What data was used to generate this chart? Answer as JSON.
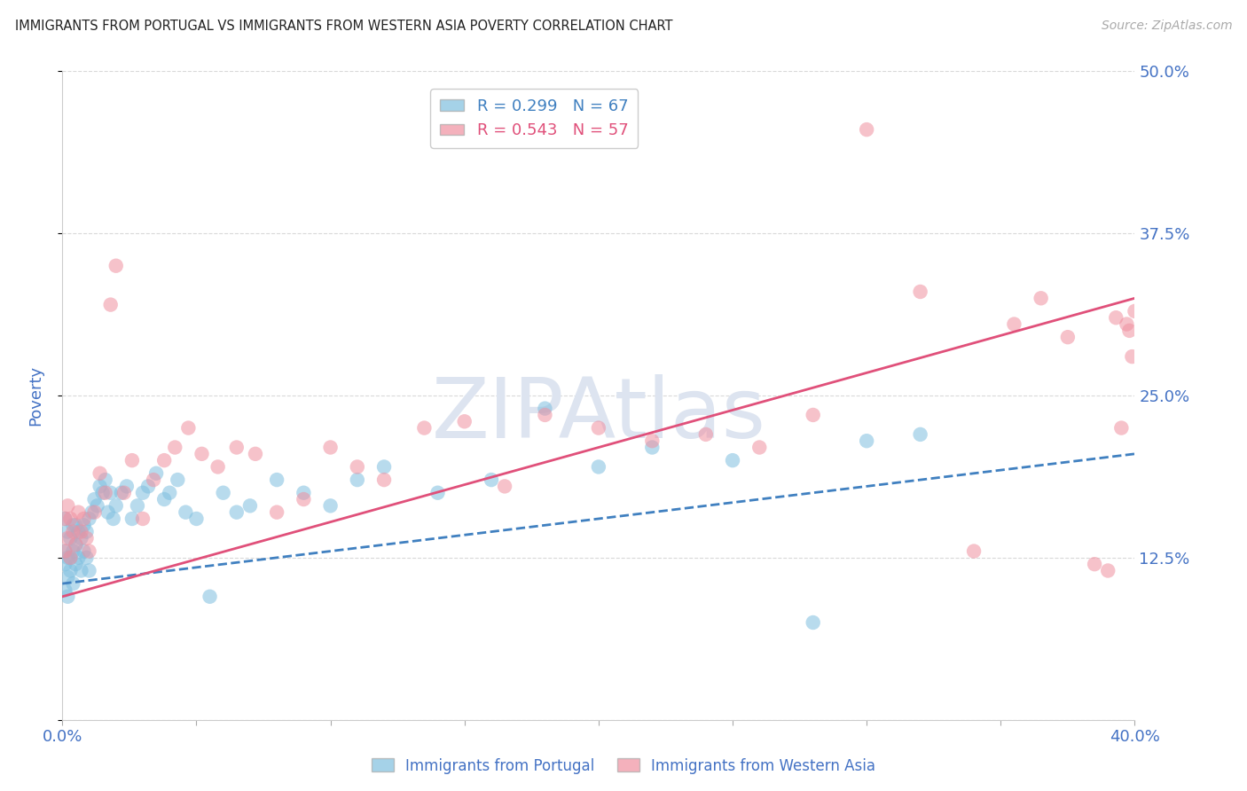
{
  "title": "IMMIGRANTS FROM PORTUGAL VS IMMIGRANTS FROM WESTERN ASIA POVERTY CORRELATION CHART",
  "source": "Source: ZipAtlas.com",
  "ylabel": "Poverty",
  "xlim": [
    0.0,
    0.4
  ],
  "ylim": [
    0.0,
    0.5
  ],
  "xticks": [
    0.0,
    0.05,
    0.1,
    0.15,
    0.2,
    0.25,
    0.3,
    0.35,
    0.4
  ],
  "xticklabels": [
    "0.0%",
    "",
    "",
    "",
    "",
    "",
    "",
    "",
    "40.0%"
  ],
  "yticks": [
    0.0,
    0.125,
    0.25,
    0.375,
    0.5
  ],
  "yticklabels": [
    "",
    "12.5%",
    "25.0%",
    "37.5%",
    "50.0%"
  ],
  "portugal_R": 0.299,
  "portugal_N": 67,
  "western_asia_R": 0.543,
  "western_asia_N": 57,
  "portugal_color": "#7fbfdf",
  "western_asia_color": "#f090a0",
  "portugal_line_color": "#4080c0",
  "western_asia_line_color": "#e0507a",
  "background_color": "#ffffff",
  "grid_color": "#d0d0d0",
  "watermark": "ZIPAtlas",
  "watermark_color": "#dde4f0",
  "title_color": "#222222",
  "tick_label_color": "#4472c4",
  "legend_label_color_portugal": "#4080c0",
  "legend_label_color_wa": "#e0507a",
  "portugal_x": [
    0.001,
    0.001,
    0.001,
    0.001,
    0.002,
    0.002,
    0.002,
    0.002,
    0.003,
    0.003,
    0.003,
    0.004,
    0.004,
    0.004,
    0.005,
    0.005,
    0.005,
    0.006,
    0.006,
    0.007,
    0.007,
    0.008,
    0.008,
    0.009,
    0.009,
    0.01,
    0.01,
    0.011,
    0.012,
    0.013,
    0.014,
    0.015,
    0.016,
    0.017,
    0.018,
    0.019,
    0.02,
    0.022,
    0.024,
    0.026,
    0.028,
    0.03,
    0.032,
    0.035,
    0.038,
    0.04,
    0.043,
    0.046,
    0.05,
    0.055,
    0.06,
    0.065,
    0.07,
    0.08,
    0.09,
    0.1,
    0.11,
    0.12,
    0.14,
    0.16,
    0.18,
    0.2,
    0.22,
    0.25,
    0.28,
    0.3,
    0.32
  ],
  "portugal_y": [
    0.1,
    0.12,
    0.13,
    0.155,
    0.095,
    0.11,
    0.125,
    0.145,
    0.115,
    0.125,
    0.14,
    0.105,
    0.13,
    0.15,
    0.12,
    0.135,
    0.15,
    0.125,
    0.145,
    0.115,
    0.14,
    0.13,
    0.15,
    0.125,
    0.145,
    0.115,
    0.155,
    0.16,
    0.17,
    0.165,
    0.18,
    0.175,
    0.185,
    0.16,
    0.175,
    0.155,
    0.165,
    0.175,
    0.18,
    0.155,
    0.165,
    0.175,
    0.18,
    0.19,
    0.17,
    0.175,
    0.185,
    0.16,
    0.155,
    0.095,
    0.175,
    0.16,
    0.165,
    0.185,
    0.175,
    0.165,
    0.185,
    0.195,
    0.175,
    0.185,
    0.24,
    0.195,
    0.21,
    0.2,
    0.075,
    0.215,
    0.22
  ],
  "western_asia_x": [
    0.001,
    0.001,
    0.002,
    0.002,
    0.003,
    0.003,
    0.004,
    0.005,
    0.006,
    0.007,
    0.008,
    0.009,
    0.01,
    0.012,
    0.014,
    0.016,
    0.018,
    0.02,
    0.023,
    0.026,
    0.03,
    0.034,
    0.038,
    0.042,
    0.047,
    0.052,
    0.058,
    0.065,
    0.072,
    0.08,
    0.09,
    0.1,
    0.11,
    0.12,
    0.135,
    0.15,
    0.165,
    0.18,
    0.2,
    0.22,
    0.24,
    0.26,
    0.28,
    0.3,
    0.32,
    0.34,
    0.355,
    0.365,
    0.375,
    0.385,
    0.39,
    0.393,
    0.395,
    0.397,
    0.398,
    0.399,
    0.4
  ],
  "western_asia_y": [
    0.13,
    0.155,
    0.14,
    0.165,
    0.125,
    0.155,
    0.145,
    0.135,
    0.16,
    0.145,
    0.155,
    0.14,
    0.13,
    0.16,
    0.19,
    0.175,
    0.32,
    0.35,
    0.175,
    0.2,
    0.155,
    0.185,
    0.2,
    0.21,
    0.225,
    0.205,
    0.195,
    0.21,
    0.205,
    0.16,
    0.17,
    0.21,
    0.195,
    0.185,
    0.225,
    0.23,
    0.18,
    0.235,
    0.225,
    0.215,
    0.22,
    0.21,
    0.235,
    0.455,
    0.33,
    0.13,
    0.305,
    0.325,
    0.295,
    0.12,
    0.115,
    0.31,
    0.225,
    0.305,
    0.3,
    0.28,
    0.315
  ],
  "portugal_trend": [
    0.105,
    0.205
  ],
  "western_asia_trend": [
    0.095,
    0.325
  ]
}
